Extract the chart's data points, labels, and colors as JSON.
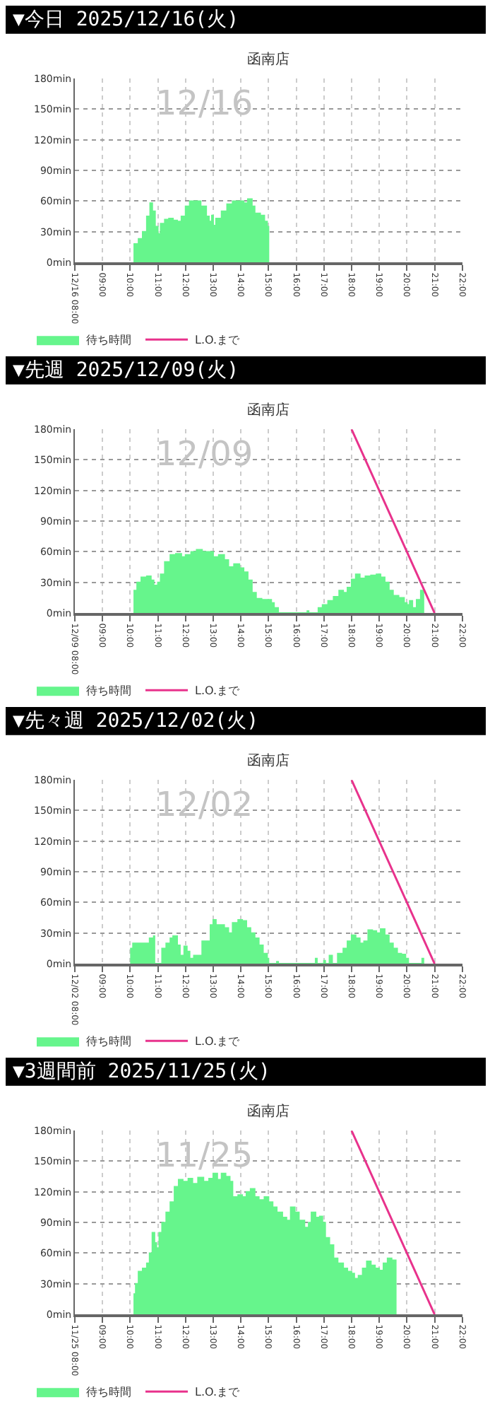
{
  "chart_data": [
    {
      "type": "area",
      "title": "▼今日 2025/12/16(火)",
      "subtitle": "函南店",
      "annotations": [
        "12/16"
      ],
      "xlim": [
        8,
        22
      ],
      "xticks": [
        {
          "value": 8,
          "label": "12/16 08:00"
        },
        {
          "value": 9,
          "label": "09:00"
        },
        {
          "value": 10,
          "label": "10:00"
        },
        {
          "value": 11,
          "label": "11:00"
        },
        {
          "value": 12,
          "label": "12:00"
        },
        {
          "value": 13,
          "label": "13:00"
        },
        {
          "value": 14,
          "label": "14:00"
        },
        {
          "value": 15,
          "label": "15:00"
        },
        {
          "value": 16,
          "label": "16:00"
        },
        {
          "value": 17,
          "label": "17:00"
        },
        {
          "value": 18,
          "label": "18:00"
        },
        {
          "value": 19,
          "label": "19:00"
        },
        {
          "value": 20,
          "label": "20:00"
        },
        {
          "value": 21,
          "label": "21:00"
        },
        {
          "value": 22,
          "label": "22:00"
        }
      ],
      "ylim": [
        0,
        180
      ],
      "yticks": [
        {
          "value": 0,
          "label": "0min"
        },
        {
          "value": 30,
          "label": "30min"
        },
        {
          "value": 60,
          "label": "60min"
        },
        {
          "value": 90,
          "label": "90min"
        },
        {
          "value": 120,
          "label": "120min"
        },
        {
          "value": 150,
          "label": "150min"
        },
        {
          "value": 180,
          "label": "180min"
        }
      ],
      "grid": true,
      "legend": "bottom left",
      "marker": "none",
      "series": [
        {
          "name": "待ち時間",
          "color": "#66f58c",
          "x": [
            10.12,
            10.3,
            10.45,
            10.6,
            10.72,
            10.8,
            10.9,
            11.0,
            11.1,
            11.25,
            11.4,
            11.55,
            11.7,
            11.85,
            12.0,
            12.15,
            12.35,
            12.55,
            12.75,
            12.85,
            12.95,
            13.0,
            13.1,
            13.3,
            13.5,
            13.7,
            13.9,
            14.1,
            14.25,
            14.4,
            14.5,
            14.7,
            14.85,
            14.95,
            15.0
          ],
          "values": [
            18,
            23,
            30,
            45,
            58,
            50,
            35,
            28,
            38,
            42,
            43,
            41,
            40,
            45,
            55,
            60,
            60,
            55,
            45,
            40,
            46,
            36,
            43,
            50,
            57,
            60,
            60,
            58,
            62,
            55,
            48,
            46,
            40,
            35,
            0
          ]
        },
        {
          "name": "L.O.まで",
          "type": "line",
          "color": "#e8328c"
        }
      ]
    },
    {
      "type": "area",
      "title": "▼先週 2025/12/09(火)",
      "subtitle": "函南店",
      "annotations": [
        "12/09"
      ],
      "xlim": [
        8,
        22
      ],
      "xticks": [
        {
          "value": 8,
          "label": "12/09 08:00"
        },
        {
          "value": 9,
          "label": "09:00"
        },
        {
          "value": 10,
          "label": "10:00"
        },
        {
          "value": 11,
          "label": "11:00"
        },
        {
          "value": 12,
          "label": "12:00"
        },
        {
          "value": 13,
          "label": "13:00"
        },
        {
          "value": 14,
          "label": "14:00"
        },
        {
          "value": 15,
          "label": "15:00"
        },
        {
          "value": 16,
          "label": "16:00"
        },
        {
          "value": 17,
          "label": "17:00"
        },
        {
          "value": 18,
          "label": "18:00"
        },
        {
          "value": 19,
          "label": "19:00"
        },
        {
          "value": 20,
          "label": "20:00"
        },
        {
          "value": 21,
          "label": "21:00"
        },
        {
          "value": 22,
          "label": "22:00"
        }
      ],
      "ylim": [
        0,
        180
      ],
      "yticks": [
        {
          "value": 0,
          "label": "0min"
        },
        {
          "value": 30,
          "label": "30min"
        },
        {
          "value": 60,
          "label": "60min"
        },
        {
          "value": 90,
          "label": "90min"
        },
        {
          "value": 120,
          "label": "120min"
        },
        {
          "value": 150,
          "label": "150min"
        },
        {
          "value": 180,
          "label": "180min"
        }
      ],
      "grid": true,
      "legend": "bottom left",
      "marker": "none",
      "series": [
        {
          "name": "待ち時間",
          "color": "#66f58c",
          "x": [
            10.12,
            10.25,
            10.4,
            10.6,
            10.75,
            10.85,
            11.0,
            11.1,
            11.25,
            11.45,
            11.65,
            11.85,
            12.0,
            12.2,
            12.4,
            12.6,
            12.8,
            13.0,
            13.2,
            13.4,
            13.55,
            13.75,
            13.95,
            14.1,
            14.25,
            14.4,
            14.55,
            14.75,
            14.95,
            15.1,
            15.2,
            15.35,
            16.4,
            16.45,
            16.8,
            16.95,
            17.15,
            17.35,
            17.55,
            17.7,
            17.85,
            18.0,
            18.15,
            18.3,
            18.5,
            18.7,
            18.9,
            19.05,
            19.2,
            19.35,
            19.5,
            19.7,
            19.9,
            20.0,
            20.1,
            20.2,
            20.35,
            20.5,
            20.6
          ],
          "values": [
            22,
            30,
            35,
            36,
            32,
            27,
            30,
            38,
            50,
            57,
            58,
            55,
            57,
            60,
            62,
            60,
            60,
            55,
            57,
            52,
            45,
            48,
            44,
            40,
            32,
            20,
            14,
            13,
            13,
            10,
            5,
            0,
            2,
            0,
            5,
            8,
            12,
            16,
            22,
            20,
            25,
            33,
            38,
            34,
            36,
            37,
            38,
            35,
            30,
            22,
            17,
            15,
            10,
            8,
            12,
            5,
            13,
            22,
            0
          ]
        },
        {
          "name": "L.O.まで",
          "type": "line",
          "color": "#e8328c",
          "x": [
            18,
            21
          ],
          "values": [
            180,
            0
          ]
        }
      ]
    },
    {
      "type": "area",
      "title": "▼先々週 2025/12/02(火)",
      "subtitle": "函南店",
      "annotations": [
        "12/02"
      ],
      "xlim": [
        8,
        22
      ],
      "xticks": [
        {
          "value": 8,
          "label": "12/02 08:00"
        },
        {
          "value": 9,
          "label": "09:00"
        },
        {
          "value": 10,
          "label": "10:00"
        },
        {
          "value": 11,
          "label": "11:00"
        },
        {
          "value": 12,
          "label": "12:00"
        },
        {
          "value": 13,
          "label": "13:00"
        },
        {
          "value": 14,
          "label": "14:00"
        },
        {
          "value": 15,
          "label": "15:00"
        },
        {
          "value": 16,
          "label": "16:00"
        },
        {
          "value": 17,
          "label": "17:00"
        },
        {
          "value": 18,
          "label": "18:00"
        },
        {
          "value": 19,
          "label": "19:00"
        },
        {
          "value": 20,
          "label": "20:00"
        },
        {
          "value": 21,
          "label": "21:00"
        },
        {
          "value": 22,
          "label": "22:00"
        }
      ],
      "ylim": [
        0,
        180
      ],
      "yticks": [
        {
          "value": 0,
          "label": "0min"
        },
        {
          "value": 30,
          "label": "30min"
        },
        {
          "value": 60,
          "label": "60min"
        },
        {
          "value": 90,
          "label": "90min"
        },
        {
          "value": 120,
          "label": "120min"
        },
        {
          "value": 150,
          "label": "150min"
        },
        {
          "value": 180,
          "label": "180min"
        }
      ],
      "grid": true,
      "legend": "bottom left",
      "marker": "none",
      "series": [
        {
          "name": "待ち時間",
          "color": "#66f58c",
          "x": [
            10.0,
            10.1,
            10.3,
            10.55,
            10.7,
            10.85,
            10.88,
            11.15,
            11.3,
            11.45,
            11.55,
            11.7,
            11.8,
            11.95,
            12.05,
            12.15,
            12.3,
            12.5,
            12.6,
            12.8,
            12.9,
            13.0,
            13.1,
            13.25,
            13.4,
            13.55,
            13.7,
            13.9,
            14.05,
            14.2,
            14.35,
            14.5,
            14.65,
            14.8,
            14.95,
            15.0,
            15.3,
            15.35,
            16.7,
            16.75,
            17.0,
            17.05,
            17.2,
            17.3,
            17.5,
            17.7,
            17.85,
            18.0,
            18.15,
            18.3,
            18.45,
            18.6,
            18.75,
            18.9,
            19.05,
            19.2,
            19.35,
            19.5,
            19.65,
            19.8,
            19.95,
            20.05,
            20.55,
            20.6
          ],
          "values": [
            15,
            20,
            20,
            20,
            25,
            27,
            0,
            15,
            20,
            25,
            27,
            18,
            8,
            17,
            12,
            5,
            8,
            8,
            22,
            22,
            38,
            43,
            38,
            38,
            35,
            30,
            40,
            43,
            42,
            35,
            30,
            25,
            18,
            10,
            5,
            0,
            2,
            0,
            5,
            0,
            3,
            0,
            8,
            0,
            10,
            15,
            22,
            28,
            25,
            20,
            22,
            33,
            32,
            30,
            34,
            28,
            20,
            15,
            10,
            9,
            5,
            0,
            5,
            0
          ]
        },
        {
          "name": "L.O.まで",
          "type": "line",
          "color": "#e8328c",
          "x": [
            18,
            21
          ],
          "values": [
            180,
            0
          ]
        }
      ]
    },
    {
      "type": "area",
      "title": "▼3週間前 2025/11/25(火)",
      "subtitle": "函南店",
      "annotations": [
        "11/25"
      ],
      "xlim": [
        8,
        22
      ],
      "xticks": [
        {
          "value": 8,
          "label": "11/25 08:00"
        },
        {
          "value": 9,
          "label": "09:00"
        },
        {
          "value": 10,
          "label": "10:00"
        },
        {
          "value": 11,
          "label": "11:00"
        },
        {
          "value": 12,
          "label": "12:00"
        },
        {
          "value": 13,
          "label": "13:00"
        },
        {
          "value": 14,
          "label": "14:00"
        },
        {
          "value": 15,
          "label": "15:00"
        },
        {
          "value": 16,
          "label": "16:00"
        },
        {
          "value": 17,
          "label": "17:00"
        },
        {
          "value": 18,
          "label": "18:00"
        },
        {
          "value": 19,
          "label": "19:00"
        },
        {
          "value": 20,
          "label": "20:00"
        },
        {
          "value": 21,
          "label": "21:00"
        },
        {
          "value": 22,
          "label": "22:00"
        }
      ],
      "ylim": [
        0,
        180
      ],
      "yticks": [
        {
          "value": 0,
          "label": "0min"
        },
        {
          "value": 30,
          "label": "30min"
        },
        {
          "value": 60,
          "label": "60min"
        },
        {
          "value": 90,
          "label": "90min"
        },
        {
          "value": 120,
          "label": "120min"
        },
        {
          "value": 150,
          "label": "150min"
        },
        {
          "value": 180,
          "label": "180min"
        }
      ],
      "grid": true,
      "legend": "bottom left",
      "marker": "none",
      "series": [
        {
          "name": "待ち時間",
          "color": "#66f58c",
          "x": [
            10.12,
            10.2,
            10.3,
            10.45,
            10.6,
            10.7,
            10.8,
            10.88,
            10.95,
            11.05,
            11.15,
            11.3,
            11.45,
            11.6,
            11.75,
            11.9,
            12.1,
            12.25,
            12.45,
            12.65,
            12.85,
            13.0,
            13.15,
            13.3,
            13.45,
            13.6,
            13.7,
            13.9,
            14.05,
            14.2,
            14.35,
            14.5,
            14.65,
            14.85,
            15.0,
            15.15,
            15.3,
            15.5,
            15.65,
            15.8,
            15.95,
            16.1,
            16.3,
            16.45,
            16.55,
            16.7,
            16.85,
            16.95,
            17.05,
            17.2,
            17.35,
            17.5,
            17.7,
            17.85,
            18.0,
            18.1,
            18.25,
            18.4,
            18.55,
            18.7,
            18.85,
            19.0,
            19.15,
            19.3,
            19.45,
            19.6
          ],
          "values": [
            20,
            30,
            42,
            45,
            50,
            60,
            80,
            70,
            65,
            80,
            90,
            100,
            110,
            125,
            132,
            130,
            133,
            128,
            134,
            130,
            133,
            138,
            132,
            138,
            135,
            130,
            115,
            117,
            115,
            120,
            123,
            115,
            112,
            115,
            110,
            105,
            100,
            95,
            92,
            105,
            100,
            92,
            85,
            90,
            100,
            95,
            96,
            90,
            75,
            68,
            55,
            50,
            45,
            42,
            40,
            35,
            38,
            45,
            52,
            48,
            45,
            43,
            50,
            55,
            53,
            0
          ]
        },
        {
          "name": "L.O.まで",
          "type": "line",
          "color": "#e8328c",
          "x": [
            18,
            21
          ],
          "values": [
            180,
            0
          ]
        }
      ]
    }
  ]
}
